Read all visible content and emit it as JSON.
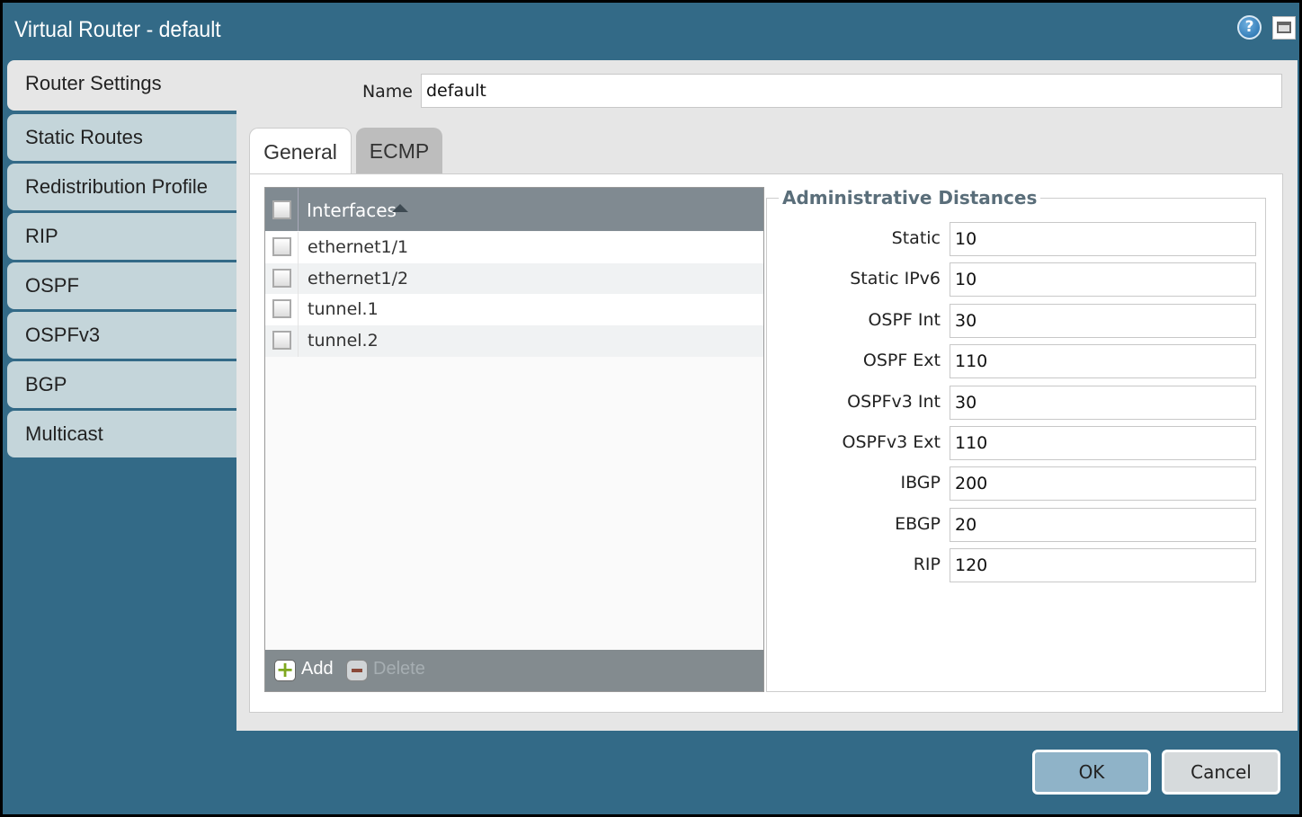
{
  "window": {
    "title": "Virtual Router - default"
  },
  "sidebar": {
    "items": [
      {
        "label": "Router Settings",
        "active": true
      },
      {
        "label": "Static Routes"
      },
      {
        "label": "Redistribution Profile"
      },
      {
        "label": "RIP"
      },
      {
        "label": "OSPF"
      },
      {
        "label": "OSPFv3"
      },
      {
        "label": "BGP"
      },
      {
        "label": "Multicast"
      }
    ]
  },
  "name": {
    "label": "Name",
    "value": "default"
  },
  "tabs": [
    {
      "label": "General",
      "active": true
    },
    {
      "label": "ECMP"
    }
  ],
  "interfaces": {
    "header": "Interfaces",
    "sort": "ascending",
    "rows": [
      "ethernet1/1",
      "ethernet1/2",
      "tunnel.1",
      "tunnel.2"
    ],
    "add_label": "Add",
    "delete_label": "Delete"
  },
  "admin": {
    "title": "Administrative Distances",
    "fields": [
      {
        "label": "Static",
        "value": "10"
      },
      {
        "label": "Static IPv6",
        "value": "10"
      },
      {
        "label": "OSPF Int",
        "value": "30"
      },
      {
        "label": "OSPF Ext",
        "value": "110"
      },
      {
        "label": "OSPFv3 Int",
        "value": "30"
      },
      {
        "label": "OSPFv3 Ext",
        "value": "110"
      },
      {
        "label": "IBGP",
        "value": "200"
      },
      {
        "label": "EBGP",
        "value": "20"
      },
      {
        "label": "RIP",
        "value": "120"
      }
    ]
  },
  "footer": {
    "ok_label": "OK",
    "cancel_label": "Cancel"
  },
  "colors": {
    "titlebar": "#336a87",
    "sidebar": "#c4d5da",
    "ok": "#8fb3c8",
    "cancel": "#d6dadc"
  }
}
